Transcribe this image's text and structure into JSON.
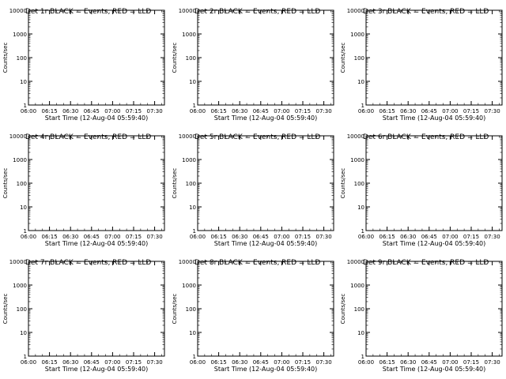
{
  "page": {
    "ylabel": "Counts/sec",
    "xlabel": "Start Time (12-Aug-04 05:59:40)",
    "title_suffix": "BLACK = Events, RED = LLD"
  },
  "chart_data": [
    {
      "type": "line",
      "title": "Det 1r BLACK = Events, RED = LLD",
      "xlabel": "Start Time (12-Aug-04 05:59:40)",
      "ylabel": "Counts/sec",
      "yscale": "log",
      "ylim": [
        1,
        10000
      ],
      "xlim": [
        "06:00",
        "07:37"
      ],
      "xticks": [
        "06:00",
        "06:15",
        "06:30",
        "06:45",
        "07:00",
        "07:15",
        "07:30"
      ],
      "yticks": [
        "1",
        "10",
        "100",
        "1000",
        "10000"
      ],
      "series": [
        {
          "color": "#000000"
        },
        {
          "color": "#ff0000"
        }
      ]
    },
    {
      "type": "line",
      "title": "Det 2r BLACK = Events, RED = LLD",
      "xlabel": "Start Time (12-Aug-04 05:59:40)",
      "ylabel": "Counts/sec",
      "yscale": "log",
      "ylim": [
        1,
        10000
      ],
      "xlim": [
        "06:00",
        "07:37"
      ],
      "xticks": [
        "06:00",
        "06:15",
        "06:30",
        "06:45",
        "07:00",
        "07:15",
        "07:30"
      ],
      "yticks": [
        "1",
        "10",
        "100",
        "1000",
        "10000"
      ],
      "series": [
        {
          "color": "#000000"
        },
        {
          "color": "#ff0000"
        }
      ]
    },
    {
      "type": "line",
      "title": "Det 3r BLACK = Events, RED = LLD",
      "xlabel": "Start Time (12-Aug-04 05:59:40)",
      "ylabel": "Counts/sec",
      "yscale": "log",
      "ylim": [
        1,
        10000
      ],
      "xlim": [
        "06:00",
        "07:37"
      ],
      "xticks": [
        "06:00",
        "06:15",
        "06:30",
        "06:45",
        "07:00",
        "07:15",
        "07:30"
      ],
      "yticks": [
        "1",
        "10",
        "100",
        "1000",
        "10000"
      ],
      "series": [
        {
          "color": "#000000"
        },
        {
          "color": "#ff0000"
        }
      ]
    },
    {
      "type": "line",
      "title": "Det 4r BLACK = Events, RED = LLD",
      "xlabel": "Start Time (12-Aug-04 05:59:40)",
      "ylabel": "Counts/sec",
      "yscale": "log",
      "ylim": [
        1,
        10000
      ],
      "xlim": [
        "06:00",
        "07:37"
      ],
      "xticks": [
        "06:00",
        "06:15",
        "06:30",
        "06:45",
        "07:00",
        "07:15",
        "07:30"
      ],
      "yticks": [
        "1",
        "10",
        "100",
        "1000",
        "10000"
      ],
      "series": [
        {
          "color": "#000000"
        },
        {
          "color": "#ff0000"
        }
      ]
    },
    {
      "type": "line",
      "title": "Det 5r BLACK = Events, RED = LLD",
      "xlabel": "Start Time (12-Aug-04 05:59:40)",
      "ylabel": "Counts/sec",
      "yscale": "log",
      "ylim": [
        1,
        10000
      ],
      "xlim": [
        "06:00",
        "07:37"
      ],
      "xticks": [
        "06:00",
        "06:15",
        "06:30",
        "06:45",
        "07:00",
        "07:15",
        "07:30"
      ],
      "yticks": [
        "1",
        "10",
        "100",
        "1000",
        "10000"
      ],
      "series": [
        {
          "color": "#000000"
        },
        {
          "color": "#ff0000"
        }
      ]
    },
    {
      "type": "line",
      "title": "Det 6r BLACK = Events, RED = LLD",
      "xlabel": "Start Time (12-Aug-04 05:59:40)",
      "ylabel": "Counts/sec",
      "yscale": "log",
      "ylim": [
        1,
        10000
      ],
      "xlim": [
        "06:00",
        "07:37"
      ],
      "xticks": [
        "06:00",
        "06:15",
        "06:30",
        "06:45",
        "07:00",
        "07:15",
        "07:30"
      ],
      "yticks": [
        "1",
        "10",
        "100",
        "1000",
        "10000"
      ],
      "series": [
        {
          "color": "#000000"
        },
        {
          "color": "#ff0000"
        }
      ]
    },
    {
      "type": "line",
      "title": "Det 7r BLACK = Events, RED = LLD",
      "xlabel": "Start Time (12-Aug-04 05:59:40)",
      "ylabel": "Counts/sec",
      "yscale": "log",
      "ylim": [
        1,
        10000
      ],
      "xlim": [
        "06:00",
        "07:37"
      ],
      "xticks": [
        "06:00",
        "06:15",
        "06:30",
        "06:45",
        "07:00",
        "07:15",
        "07:30"
      ],
      "yticks": [
        "1",
        "10",
        "100",
        "1000",
        "10000"
      ],
      "series": [
        {
          "color": "#000000"
        },
        {
          "color": "#ff0000"
        }
      ]
    },
    {
      "type": "line",
      "title": "Det 8r BLACK = Events, RED = LLD",
      "xlabel": "Start Time (12-Aug-04 05:59:40)",
      "ylabel": "Counts/sec",
      "yscale": "log",
      "ylim": [
        1,
        10000
      ],
      "xlim": [
        "06:00",
        "07:37"
      ],
      "xticks": [
        "06:00",
        "06:15",
        "06:30",
        "06:45",
        "07:00",
        "07:15",
        "07:30"
      ],
      "yticks": [
        "1",
        "10",
        "100",
        "1000",
        "10000"
      ],
      "series": [
        {
          "color": "#000000"
        },
        {
          "color": "#ff0000"
        }
      ]
    },
    {
      "type": "line",
      "title": "Det 9r BLACK = Events, RED = LLD",
      "xlabel": "Start Time (12-Aug-04 05:59:40)",
      "ylabel": "Counts/sec",
      "yscale": "log",
      "ylim": [
        1,
        10000
      ],
      "xlim": [
        "06:00",
        "07:37"
      ],
      "xticks": [
        "06:00",
        "06:15",
        "06:30",
        "06:45",
        "07:00",
        "07:15",
        "07:30"
      ],
      "yticks": [
        "1",
        "10",
        "100",
        "1000",
        "10000"
      ],
      "series": [
        {
          "color": "#000000"
        },
        {
          "color": "#ff0000"
        }
      ]
    }
  ]
}
